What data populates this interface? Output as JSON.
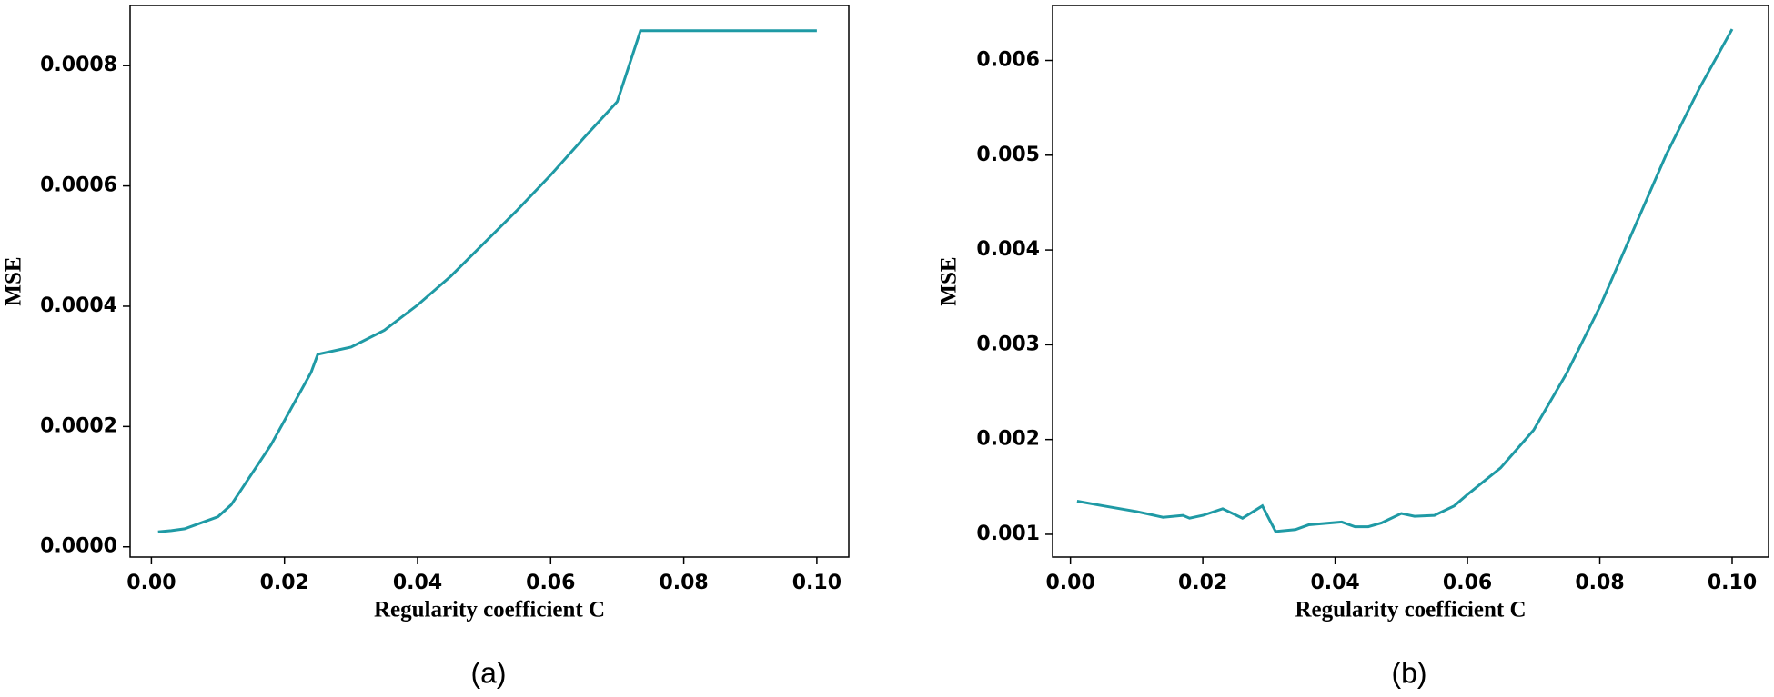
{
  "chart_data": [
    {
      "type": "line",
      "caption": "(a)",
      "xlabel": "Regularity coefficient C",
      "ylabel": "MSE",
      "color": "#1f9aa5",
      "xlim": [
        -0.0032,
        0.1048
      ],
      "ylim": [
        -1.7e-05,
        0.0009
      ],
      "xticks": [
        {
          "value": 0,
          "label": "0.00"
        },
        0.02,
        0.04,
        0.06,
        0.08,
        {
          "value": 0.1,
          "label": "0.10"
        }
      ],
      "yticks": [
        {
          "value": 0,
          "label": "0.0000"
        },
        {
          "value": 0.0002,
          "label": "0.0002"
        },
        {
          "value": 0.0004,
          "label": "0.0004"
        },
        {
          "value": 0.0006,
          "label": "0.0006"
        },
        {
          "value": 0.0008,
          "label": "0.0008"
        }
      ],
      "series": [
        {
          "x": [
            0.001,
            0.003,
            0.005,
            0.008,
            0.01,
            0.012,
            0.015,
            0.018,
            0.02,
            0.022,
            0.024,
            0.025,
            0.03,
            0.035,
            0.04,
            0.045,
            0.05,
            0.055,
            0.06,
            0.065,
            0.07,
            0.0735,
            0.08,
            0.09,
            0.1
          ],
          "values": [
            2.5e-05,
            2.7e-05,
            3e-05,
            4.2e-05,
            5e-05,
            7e-05,
            0.00012,
            0.00017,
            0.00021,
            0.00025,
            0.00029,
            0.00032,
            0.000332,
            0.00036,
            0.000402,
            0.00045,
            0.000505,
            0.00056,
            0.000618,
            0.00068,
            0.00074,
            0.000858,
            0.000858,
            0.000858,
            0.000858
          ]
        }
      ]
    },
    {
      "type": "line",
      "caption": "(b)",
      "xlabel": "Regularity coefficient C",
      "ylabel": "MSE",
      "color": "#1f9aa5",
      "xlim": [
        -0.0027,
        0.1055
      ],
      "ylim": [
        0.00076,
        0.00658
      ],
      "xticks": [
        {
          "value": 0,
          "label": "0.00"
        },
        0.02,
        0.04,
        0.06,
        0.08,
        {
          "value": 0.1,
          "label": "0.10"
        }
      ],
      "yticks": [
        0.001,
        0.002,
        0.003,
        0.004,
        0.005,
        0.006
      ],
      "series": [
        {
          "x": [
            0.001,
            0.005,
            0.01,
            0.014,
            0.017,
            0.018,
            0.02,
            0.023,
            0.026,
            0.029,
            0.031,
            0.034,
            0.036,
            0.041,
            0.043,
            0.045,
            0.047,
            0.05,
            0.052,
            0.055,
            0.058,
            0.06,
            0.065,
            0.07,
            0.075,
            0.08,
            0.085,
            0.09,
            0.095,
            0.1
          ],
          "values": [
            0.00135,
            0.0013,
            0.00124,
            0.00118,
            0.0012,
            0.00117,
            0.0012,
            0.00127,
            0.00117,
            0.0013,
            0.00103,
            0.00105,
            0.0011,
            0.00113,
            0.00108,
            0.00108,
            0.00112,
            0.00122,
            0.00119,
            0.0012,
            0.0013,
            0.00142,
            0.0017,
            0.0021,
            0.0027,
            0.0034,
            0.0042,
            0.005,
            0.0057,
            0.00633
          ]
        }
      ]
    }
  ]
}
